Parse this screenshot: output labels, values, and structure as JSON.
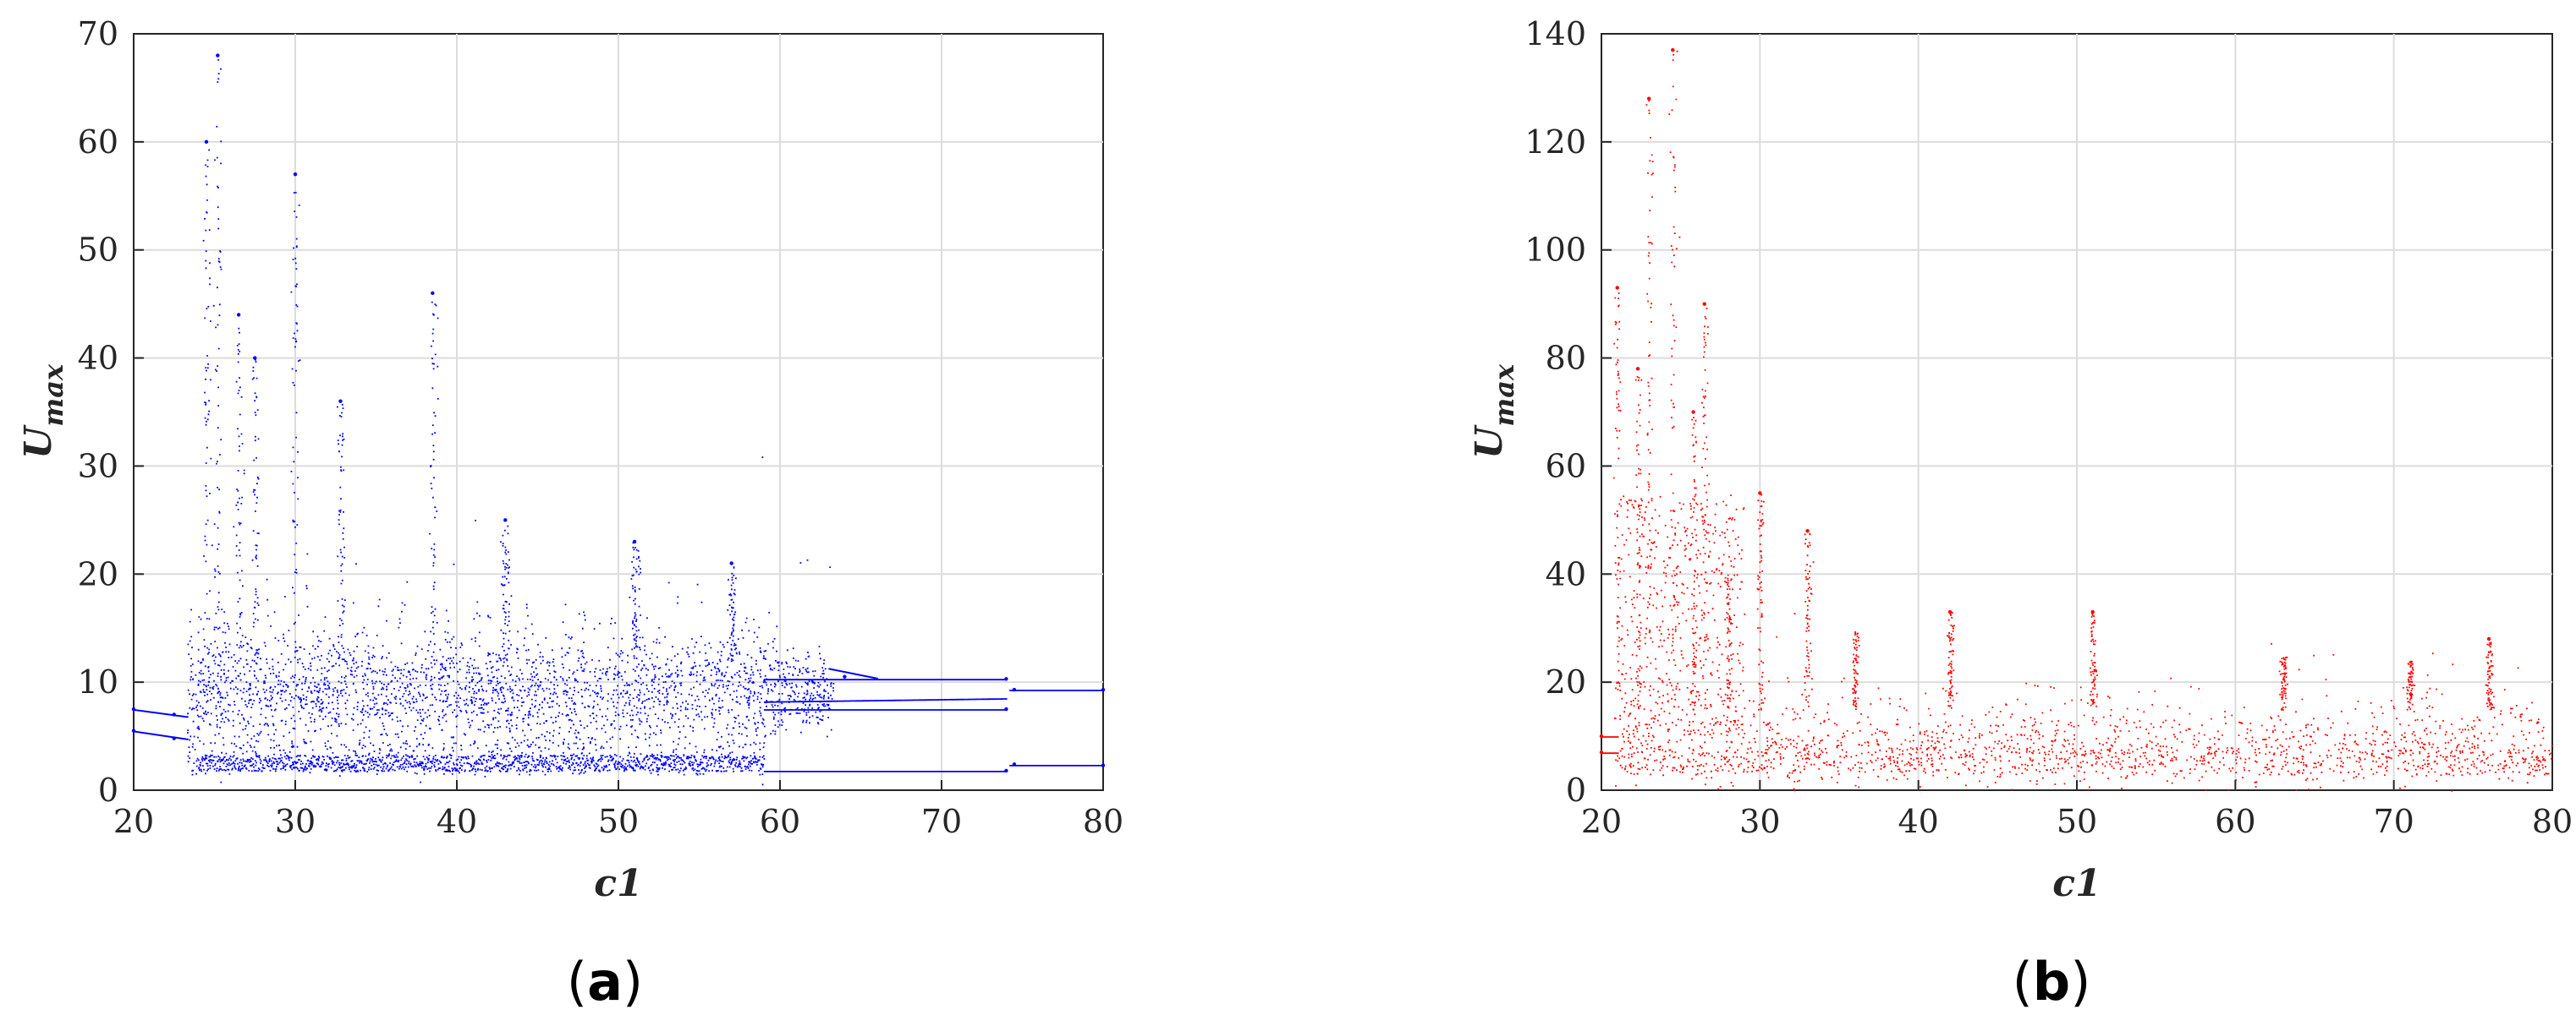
{
  "chart_data": [
    {
      "type": "scatter",
      "panel_label_open": "(",
      "panel_label": "a",
      "panel_label_close": ")",
      "xlabel": "c1",
      "ylabel_main": "U",
      "ylabel_sub": "max",
      "xlim": [
        20,
        80
      ],
      "ylim": [
        0,
        70
      ],
      "xticks": [
        20,
        30,
        40,
        50,
        60,
        70,
        80
      ],
      "yticks": [
        0,
        10,
        20,
        30,
        40,
        50,
        60,
        70
      ],
      "grid": true,
      "color": "#0000ff",
      "series": [
        {
          "description_points": [
            {
              "x": 20,
              "y": 7.5
            },
            {
              "x": 20,
              "y": 5.5
            },
            {
              "x": 22.5,
              "y": 7.0
            },
            {
              "x": 22.5,
              "y": 4.8
            },
            {
              "x": 24.5,
              "y": 60
            },
            {
              "x": 25.2,
              "y": 68
            },
            {
              "x": 26.5,
              "y": 44
            },
            {
              "x": 27.5,
              "y": 40
            },
            {
              "x": 30,
              "y": 57
            },
            {
              "x": 32.8,
              "y": 36
            },
            {
              "x": 38.5,
              "y": 46
            },
            {
              "x": 43,
              "y": 25
            },
            {
              "x": 51,
              "y": 23
            },
            {
              "x": 57,
              "y": 21
            },
            {
              "x": 64,
              "y": 10.5
            },
            {
              "x": 74,
              "y": 10.3
            },
            {
              "x": 74,
              "y": 7.5
            },
            {
              "x": 74,
              "y": 1.8
            },
            {
              "x": 74.5,
              "y": 9.3
            },
            {
              "x": 80,
              "y": 9.3
            },
            {
              "x": 74.5,
              "y": 2.4
            },
            {
              "x": 80,
              "y": 2.3
            }
          ]
        }
      ]
    },
    {
      "type": "scatter",
      "panel_label_open": "(",
      "panel_label": "b",
      "panel_label_close": ")",
      "xlabel": "c1",
      "ylabel_main": "U",
      "ylabel_sub": "max",
      "xlim": [
        20,
        80
      ],
      "ylim": [
        0,
        140
      ],
      "xticks": [
        20,
        30,
        40,
        50,
        60,
        70,
        80
      ],
      "yticks": [
        0,
        20,
        40,
        60,
        80,
        100,
        120,
        140
      ],
      "grid": true,
      "color": "#ff0000",
      "series": [
        {
          "description_points": [
            {
              "x": 20,
              "y": 10
            },
            {
              "x": 20,
              "y": 7
            },
            {
              "x": 21,
              "y": 93
            },
            {
              "x": 22.3,
              "y": 78
            },
            {
              "x": 23,
              "y": 128
            },
            {
              "x": 24.5,
              "y": 137
            },
            {
              "x": 25.8,
              "y": 70
            },
            {
              "x": 26.5,
              "y": 90
            },
            {
              "x": 30,
              "y": 55
            },
            {
              "x": 33,
              "y": 48
            },
            {
              "x": 42,
              "y": 33
            },
            {
              "x": 51,
              "y": 33
            },
            {
              "x": 76,
              "y": 28
            }
          ]
        }
      ]
    }
  ]
}
